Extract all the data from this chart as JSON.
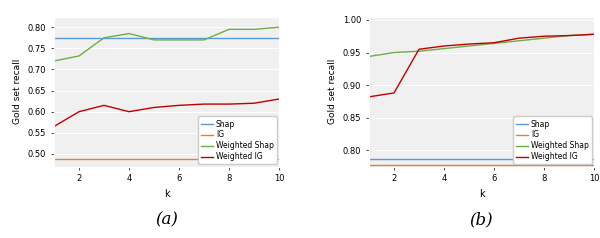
{
  "k": [
    1,
    2,
    3,
    4,
    5,
    6,
    7,
    8,
    9,
    10
  ],
  "a": {
    "shap": [
      0.775,
      0.775,
      0.775,
      0.775,
      0.775,
      0.775,
      0.775,
      0.775,
      0.775,
      0.775
    ],
    "ig": [
      0.487,
      0.487,
      0.487,
      0.487,
      0.487,
      0.487,
      0.487,
      0.487,
      0.487,
      0.487
    ],
    "weighted_shap": [
      0.72,
      0.732,
      0.775,
      0.785,
      0.77,
      0.77,
      0.77,
      0.795,
      0.795,
      0.8
    ],
    "weighted_ig": [
      0.565,
      0.6,
      0.615,
      0.6,
      0.61,
      0.615,
      0.618,
      0.618,
      0.62,
      0.63
    ],
    "ylabel": "Gold set recall",
    "xlabel": "k",
    "ylim": [
      0.47,
      0.825
    ],
    "yticks": [
      0.5,
      0.55,
      0.6,
      0.65,
      0.7,
      0.75,
      0.8
    ],
    "label": "(a)"
  },
  "b": {
    "shap": [
      0.786,
      0.786,
      0.786,
      0.786,
      0.786,
      0.786,
      0.786,
      0.786,
      0.786,
      0.786
    ],
    "ig": [
      0.778,
      0.778,
      0.778,
      0.778,
      0.778,
      0.778,
      0.778,
      0.778,
      0.778,
      0.778
    ],
    "weighted_shap": [
      0.944,
      0.95,
      0.952,
      0.956,
      0.96,
      0.964,
      0.968,
      0.972,
      0.976,
      0.978
    ],
    "weighted_ig": [
      0.882,
      0.888,
      0.955,
      0.96,
      0.963,
      0.965,
      0.972,
      0.975,
      0.976,
      0.978
    ],
    "ylabel": "Gold set recall",
    "xlabel": "k",
    "ylim": [
      0.775,
      1.005
    ],
    "yticks": [
      0.8,
      0.85,
      0.9,
      0.95,
      1.0
    ],
    "label": "(b)"
  },
  "legend_labels": [
    "Shap",
    "IG",
    "Weighted Shap",
    "Weighted IG"
  ],
  "colors": {
    "shap": "#5b9bd5",
    "ig": "#ed7d31",
    "weighted_shap": "#70ad47",
    "weighted_ig": "#c00000"
  },
  "line_width": 1.0,
  "bg_color": "#f0f0f0"
}
